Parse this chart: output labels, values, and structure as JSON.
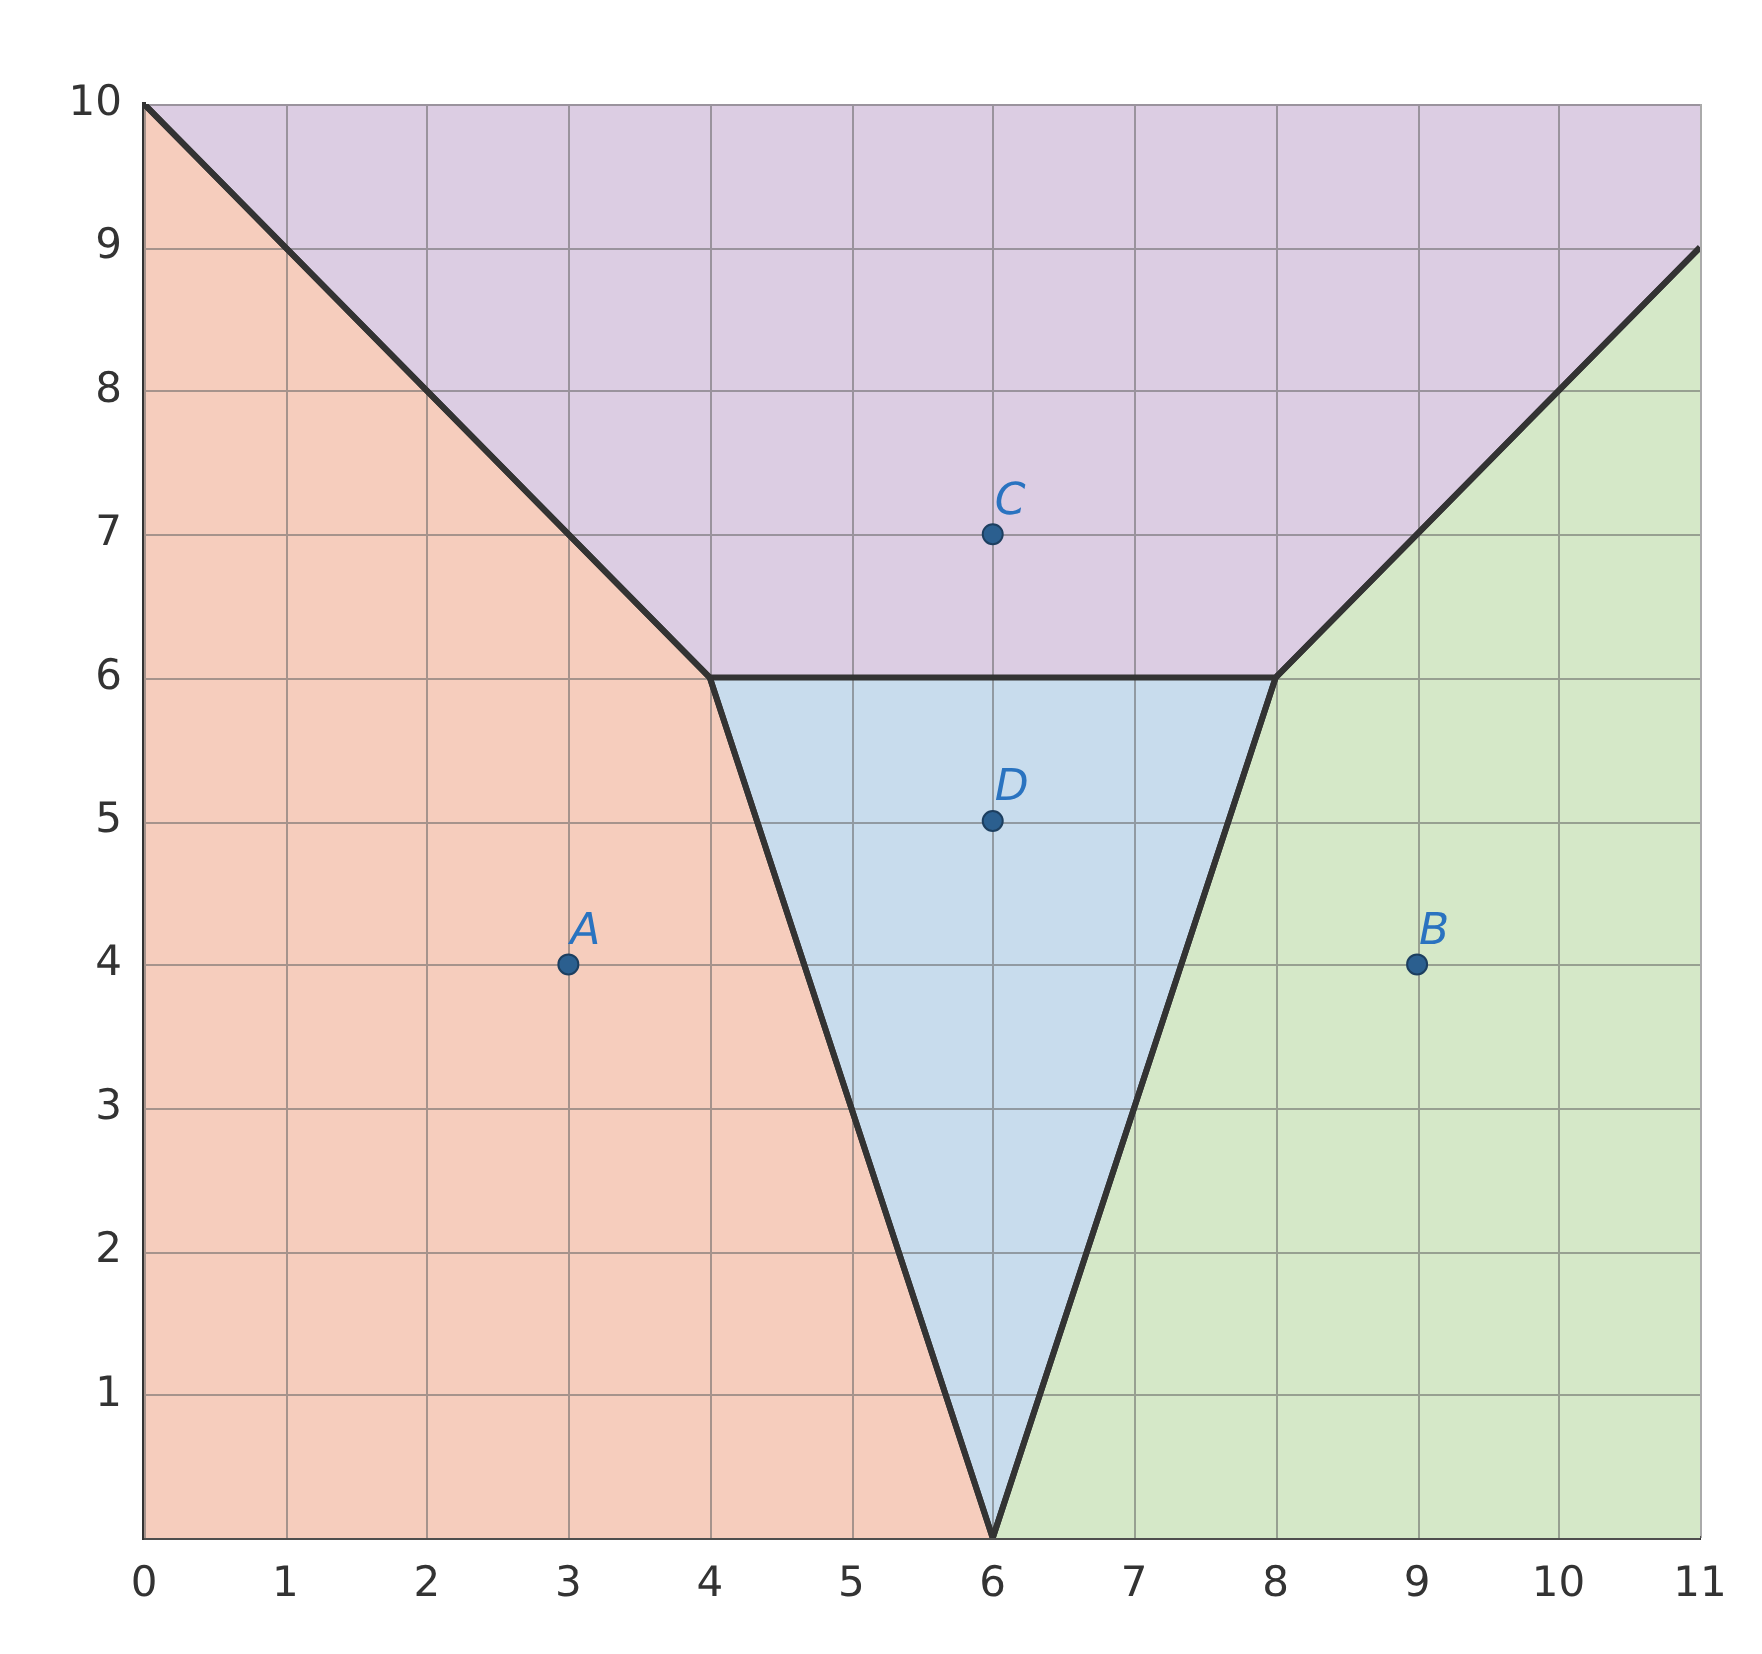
{
  "chart_data": {
    "type": "area",
    "xlim": [
      0,
      11
    ],
    "ylim": [
      0,
      10
    ],
    "xticks": [
      0,
      1,
      2,
      3,
      4,
      5,
      6,
      7,
      8,
      9,
      10,
      11
    ],
    "yticks": [
      {
        "value": 0,
        "label": null
      },
      1,
      2,
      3,
      4,
      5,
      6,
      7,
      8,
      9,
      10
    ],
    "grid": true,
    "legend": false,
    "series": [
      {
        "color": "#f6cdbd",
        "x": [
          0,
          4,
          6,
          0
        ],
        "values": [
          10,
          6,
          0,
          0
        ]
      },
      {
        "color": "#d5e8c8",
        "x": [
          6,
          8,
          11,
          11
        ],
        "values": [
          0,
          6,
          9,
          0
        ]
      },
      {
        "color": "#c8dced",
        "x": [
          4,
          6,
          8
        ],
        "values": [
          6,
          0,
          6
        ]
      },
      {
        "color": "#dccde3",
        "x": [
          0,
          4,
          8,
          11,
          11,
          0
        ],
        "values": [
          10,
          6,
          6,
          9,
          10,
          10
        ]
      },
      {
        "type": "scatter",
        "color": "#2b5f8f",
        "x": [
          3,
          9,
          6,
          6
        ],
        "values": [
          4,
          4,
          7,
          5
        ],
        "value_labels": [
          "A",
          "B",
          "C",
          "D"
        ]
      }
    ]
  }
}
